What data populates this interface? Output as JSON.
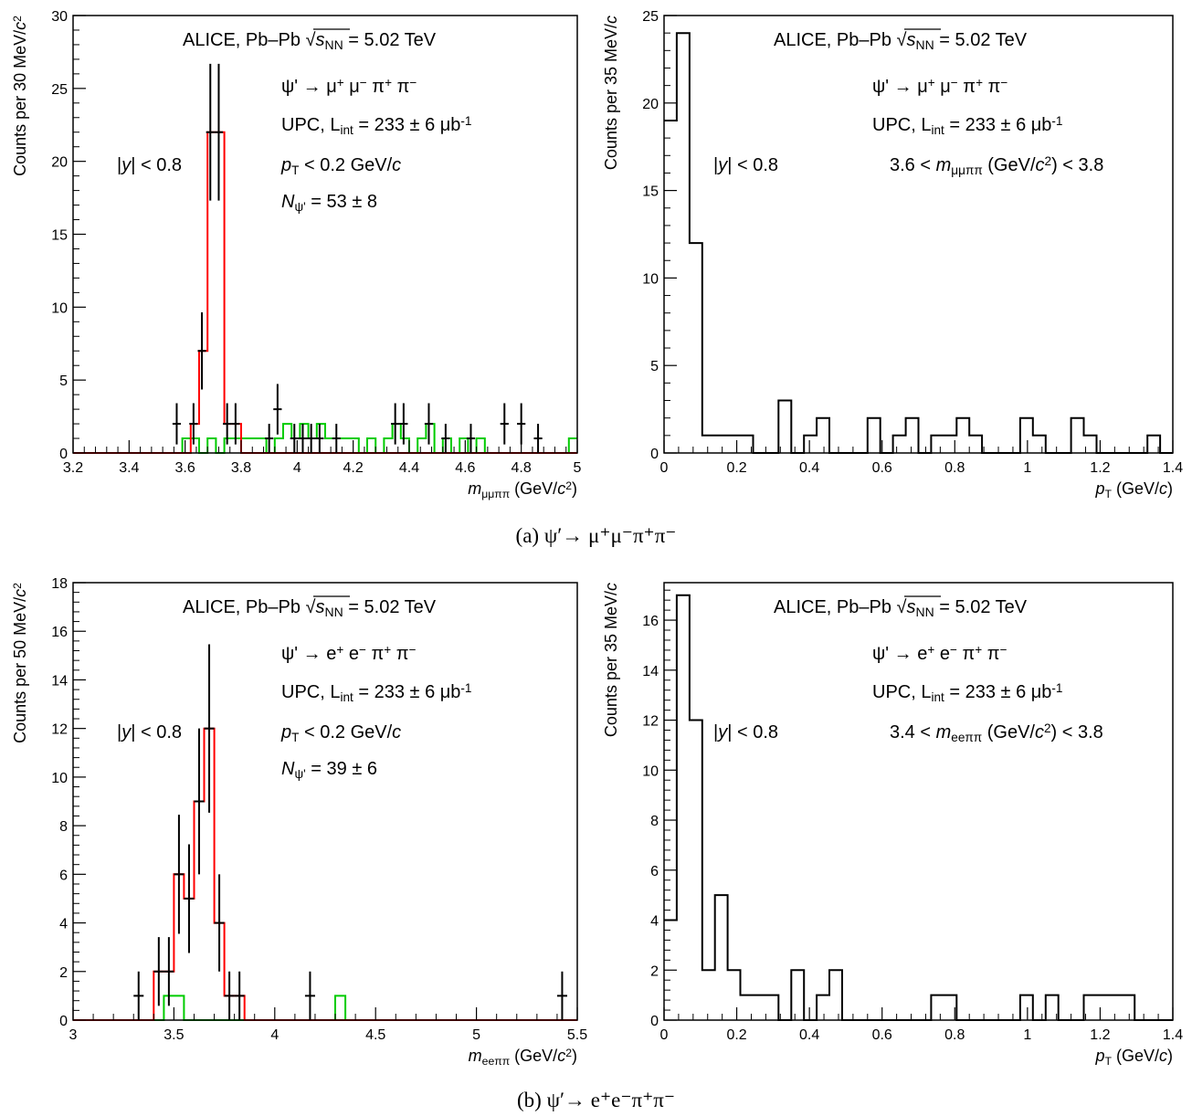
{
  "captions": {
    "a": "(a)  ψ′→ μ⁺μ⁻π⁺π⁻",
    "b": "(b)  ψ′→ e⁺e⁻π⁺π⁻"
  },
  "colors": {
    "data": "#000000",
    "signal": "#ff0000",
    "background": "#00cc00"
  },
  "chart_data": [
    {
      "id": "a-mass",
      "type": "bar",
      "xlabel": "mμμππ (GeV/c²)",
      "ylabel": "Counts per 30 MeV/c²",
      "xlim": [
        3.2,
        5.0
      ],
      "ylim": [
        0,
        30
      ],
      "xticks": [
        3.2,
        3.4,
        3.6,
        3.8,
        4.0,
        4.2,
        4.4,
        4.6,
        4.8,
        5.0
      ],
      "xtick_labels": [
        "3.2",
        "3.4",
        "3.6",
        "3.8",
        "4",
        "4.2",
        "4.4",
        "4.6",
        "4.8",
        "5"
      ],
      "yticks": [
        0,
        5,
        10,
        15,
        20,
        25,
        30
      ],
      "ytick_labels": [
        "0",
        "5",
        "10",
        "15",
        "20",
        "25",
        "30"
      ],
      "grid": false,
      "texts": {
        "header": "ALICE, Pb–Pb √sNN = 5.02 TeV",
        "decay": "ψ' → μ⁺ μ⁻ π⁺ π⁻",
        "lumi": "UPC, Lint = 233 ± 6 μb⁻¹",
        "rapidity": "|y| < 0.8",
        "pt_cut": "pT < 0.2 GeV/c",
        "yield": "Nψ' = 53 ± 8"
      },
      "points": {
        "name": "data",
        "x": [
          3.57,
          3.63,
          3.66,
          3.69,
          3.72,
          3.75,
          3.78,
          3.9,
          3.93,
          3.99,
          4.02,
          4.05,
          4.08,
          4.14,
          4.35,
          4.38,
          4.47,
          4.53,
          4.62,
          4.74,
          4.8,
          4.86
        ],
        "y": [
          2,
          2,
          7,
          22,
          22,
          2,
          2,
          1,
          3,
          1,
          1,
          1,
          1,
          1,
          2,
          2,
          2,
          1,
          1,
          2,
          2,
          1
        ]
      },
      "signal_hist": {
        "name": "signal",
        "edges": [
          3.2,
          3.62,
          3.65,
          3.68,
          3.74,
          3.8,
          5.0
        ],
        "values": [
          0,
          2,
          7,
          22,
          2,
          0
        ]
      },
      "background_hist": {
        "name": "background",
        "edges": [
          3.2,
          3.59,
          3.65,
          3.68,
          3.71,
          3.74,
          3.77,
          3.89,
          3.92,
          3.95,
          3.98,
          4.01,
          4.04,
          4.07,
          4.1,
          4.22,
          4.25,
          4.28,
          4.31,
          4.34,
          4.37,
          4.4,
          4.43,
          4.46,
          4.49,
          4.52,
          4.55,
          4.58,
          4.61,
          4.64,
          4.67,
          4.97,
          5.0
        ],
        "values": [
          0,
          1,
          0,
          1,
          0,
          1,
          1,
          0,
          1,
          2,
          1,
          2,
          1,
          2,
          1,
          0,
          1,
          0,
          1,
          2,
          1,
          0,
          1,
          2,
          0,
          1,
          0,
          1,
          0,
          1,
          0,
          1
        ]
      }
    },
    {
      "id": "a-pt",
      "type": "bar",
      "xlabel": "pT (GeV/c)",
      "ylabel": "Counts per 35 MeV/c",
      "xlim": [
        0,
        1.4
      ],
      "ylim": [
        0,
        25
      ],
      "xticks": [
        0,
        0.2,
        0.4,
        0.6,
        0.8,
        1.0,
        1.2,
        1.4
      ],
      "xtick_labels": [
        "0",
        "0.2",
        "0.4",
        "0.6",
        "0.8",
        "1",
        "1.2",
        "1.4"
      ],
      "yticks": [
        0,
        5,
        10,
        15,
        20,
        25
      ],
      "ytick_labels": [
        "0",
        "5",
        "10",
        "15",
        "20",
        "25"
      ],
      "grid": false,
      "texts": {
        "header": "ALICE, Pb–Pb √sNN = 5.02 TeV",
        "decay": "ψ' → μ⁺ μ⁻ π⁺ π⁻",
        "lumi": "UPC, Lint = 233 ± 6 μb⁻¹",
        "rapidity": "|y| < 0.8",
        "mass_cut": "3.6 < mμμππ (GeV/c²) < 3.8"
      },
      "hist": {
        "name": "data",
        "edges": [
          0,
          0.035,
          0.07,
          0.105,
          0.14,
          0.175,
          0.21,
          0.245,
          0.28,
          0.315,
          0.35,
          0.385,
          0.42,
          0.455,
          0.49,
          0.525,
          0.56,
          0.595,
          0.63,
          0.665,
          0.7,
          0.735,
          0.77,
          0.805,
          0.84,
          0.875,
          0.91,
          0.945,
          0.98,
          1.015,
          1.05,
          1.085,
          1.12,
          1.155,
          1.19,
          1.225,
          1.26,
          1.295,
          1.33,
          1.365,
          1.4
        ],
        "values": [
          19,
          24,
          12,
          1,
          1,
          1,
          1,
          0,
          0,
          3,
          0,
          1,
          2,
          0,
          0,
          0,
          2,
          0,
          1,
          2,
          0,
          1,
          1,
          2,
          1,
          0,
          0,
          0,
          2,
          1,
          0,
          0,
          2,
          1,
          0,
          0,
          0,
          0,
          1,
          0
        ]
      }
    },
    {
      "id": "b-mass",
      "type": "bar",
      "xlabel": "meeππ (GeV/c²)",
      "ylabel": "Counts per 50 MeV/c²",
      "xlim": [
        3.0,
        5.5
      ],
      "ylim": [
        0,
        18
      ],
      "xticks": [
        3.0,
        3.5,
        4.0,
        4.5,
        5.0,
        5.5
      ],
      "xtick_labels": [
        "3",
        "3.5",
        "4",
        "4.5",
        "5",
        "5.5"
      ],
      "yticks": [
        0,
        2,
        4,
        6,
        8,
        10,
        12,
        14,
        16,
        18
      ],
      "ytick_labels": [
        "0",
        "2",
        "4",
        "6",
        "8",
        "10",
        "12",
        "14",
        "16",
        "18"
      ],
      "grid": false,
      "texts": {
        "header": "ALICE, Pb–Pb √sNN = 5.02 TeV",
        "decay": "ψ' → e⁺ e⁻ π⁺ π⁻",
        "lumi": "UPC, Lint = 233 ± 6 μb⁻¹",
        "rapidity": "|y| < 0.8",
        "pt_cut": "pT < 0.2 GeV/c",
        "yield": "Nψ' = 39 ± 6"
      },
      "points": {
        "name": "data",
        "x": [
          3.325,
          3.425,
          3.475,
          3.525,
          3.575,
          3.625,
          3.675,
          3.725,
          3.775,
          3.825,
          4.175,
          5.425
        ],
        "y": [
          1,
          2,
          2,
          6,
          5,
          9,
          12,
          4,
          1,
          1,
          1,
          1
        ]
      },
      "signal_hist": {
        "name": "signal",
        "edges": [
          3.0,
          3.4,
          3.45,
          3.5,
          3.55,
          3.6,
          3.65,
          3.7,
          3.75,
          3.8,
          3.85,
          5.5
        ],
        "values": [
          0,
          2,
          2,
          6,
          5,
          9,
          12,
          4,
          1,
          1,
          0
        ]
      },
      "background_hist": {
        "name": "background",
        "edges": [
          3.0,
          3.45,
          3.55,
          4.3,
          4.35,
          5.5
        ],
        "values": [
          0,
          1,
          0,
          1,
          0
        ]
      }
    },
    {
      "id": "b-pt",
      "type": "bar",
      "xlabel": "pT (GeV/c)",
      "ylabel": "Counts per 35 MeV/c",
      "xlim": [
        0,
        1.4
      ],
      "ylim": [
        0,
        17.5
      ],
      "xticks": [
        0,
        0.2,
        0.4,
        0.6,
        0.8,
        1.0,
        1.2,
        1.4
      ],
      "xtick_labels": [
        "0",
        "0.2",
        "0.4",
        "0.6",
        "0.8",
        "1",
        "1.2",
        "1.4"
      ],
      "yticks": [
        0,
        2,
        4,
        6,
        8,
        10,
        12,
        14,
        16
      ],
      "ytick_labels": [
        "0",
        "2",
        "4",
        "6",
        "8",
        "10",
        "12",
        "14",
        "16"
      ],
      "grid": false,
      "texts": {
        "header": "ALICE, Pb–Pb √sNN = 5.02 TeV",
        "decay": "ψ' → e⁺ e⁻ π⁺ π⁻",
        "lumi": "UPC, Lint = 233 ± 6 μb⁻¹",
        "rapidity": "|y| < 0.8",
        "mass_cut": "3.4 < meeππ (GeV/c²) < 3.8"
      },
      "hist": {
        "name": "data",
        "edges": [
          0,
          0.035,
          0.07,
          0.105,
          0.14,
          0.175,
          0.21,
          0.245,
          0.28,
          0.315,
          0.35,
          0.385,
          0.42,
          0.455,
          0.49,
          0.525,
          0.56,
          0.595,
          0.63,
          0.665,
          0.7,
          0.735,
          0.77,
          0.805,
          0.84,
          0.875,
          0.91,
          0.945,
          0.98,
          1.015,
          1.05,
          1.085,
          1.12,
          1.155,
          1.19,
          1.225,
          1.26,
          1.295,
          1.33,
          1.365,
          1.4
        ],
        "values": [
          4,
          17,
          12,
          2,
          5,
          2,
          1,
          1,
          1,
          0,
          2,
          0,
          1,
          2,
          0,
          0,
          0,
          0,
          0,
          0,
          0,
          1,
          1,
          0,
          0,
          0,
          0,
          0,
          1,
          0,
          1,
          0,
          0,
          1,
          1,
          1,
          1,
          0,
          0,
          0
        ]
      }
    }
  ]
}
